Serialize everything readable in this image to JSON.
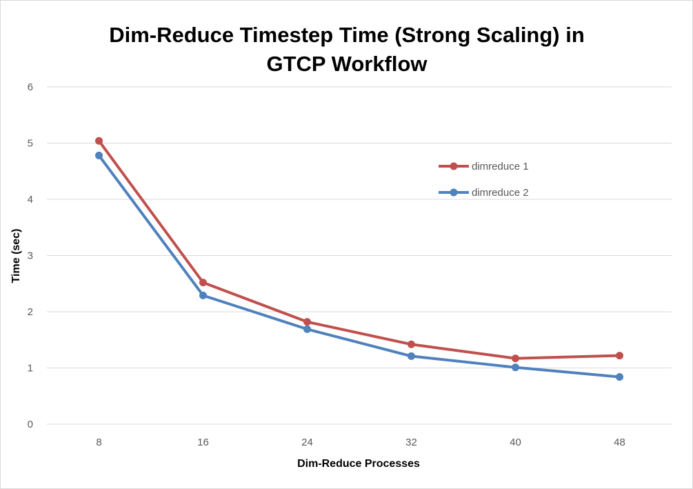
{
  "chart_data": {
    "type": "line",
    "title_lines": [
      "Dim-Reduce Timestep Time (Strong Scaling) in",
      "GTCP Workflow"
    ],
    "xlabel": "Dim-Reduce Processes",
    "ylabel": "Time (sec)",
    "categories": [
      "8",
      "16",
      "24",
      "32",
      "40",
      "48"
    ],
    "ylim": [
      0,
      6
    ],
    "yticks": [
      "0",
      "1",
      "2",
      "3",
      "4",
      "5",
      "6"
    ],
    "grid": true,
    "legend_position": "right",
    "series": [
      {
        "name": "dimreduce 1",
        "color": "#c0504d",
        "values": [
          5.04,
          2.52,
          1.82,
          1.42,
          1.17,
          1.22
        ]
      },
      {
        "name": "dimreduce 2",
        "color": "#4f81bd",
        "values": [
          4.78,
          2.29,
          1.69,
          1.21,
          1.01,
          0.84
        ]
      }
    ]
  }
}
